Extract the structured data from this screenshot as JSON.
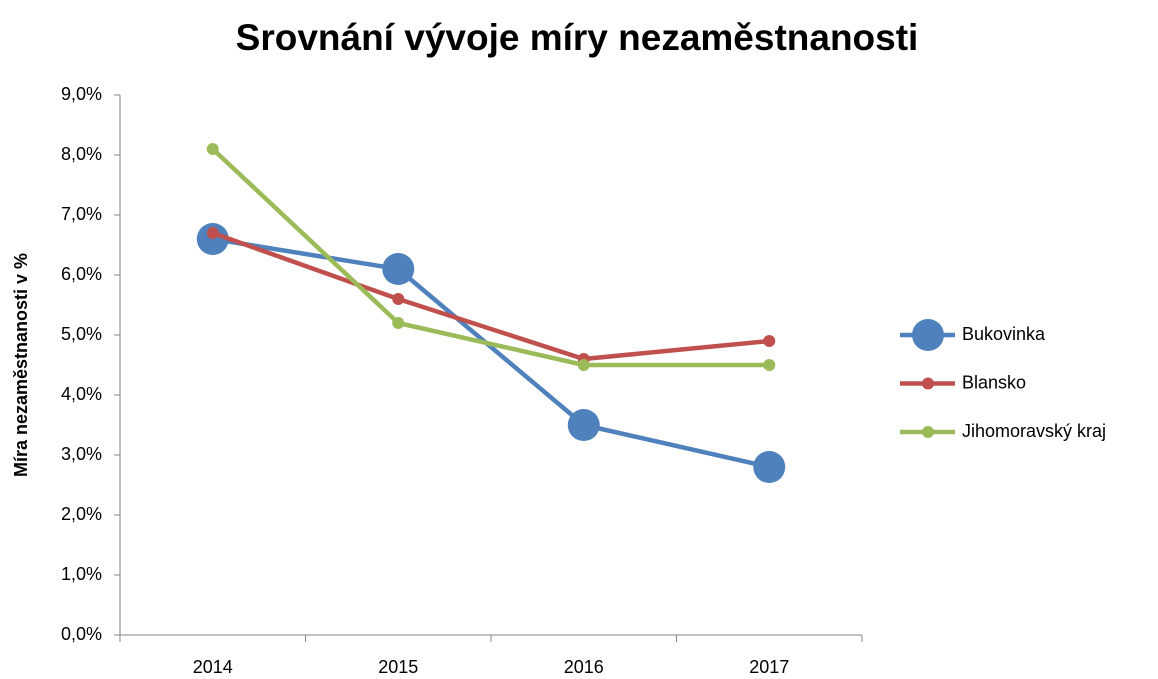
{
  "chart_data": {
    "type": "line",
    "title": "Srovnání vývoje míry nezaměstnanosti",
    "y_label": "Míra nezaměstnanosti v %",
    "categories": [
      "2014",
      "2015",
      "2016",
      "2017"
    ],
    "series": [
      {
        "name": "Bukovinka",
        "color": "#4f81bd",
        "values": [
          6.6,
          6.1,
          3.5,
          2.8
        ]
      },
      {
        "name": "Blansko",
        "color": "#c0504d",
        "values": [
          6.7,
          5.6,
          4.6,
          4.9
        ]
      },
      {
        "name": "Jihomoravský kraj",
        "color": "#9bbb59",
        "values": [
          8.1,
          5.2,
          4.5,
          4.5
        ]
      }
    ],
    "ylim": [
      0,
      9
    ],
    "yticks": [
      {
        "value": 0,
        "label": "0,0%"
      },
      {
        "value": 1,
        "label": "1,0%"
      },
      {
        "value": 2,
        "label": "2,0%"
      },
      {
        "value": 3,
        "label": "3,0%"
      },
      {
        "value": 4,
        "label": "4,0%"
      },
      {
        "value": 5,
        "label": "5,0%"
      },
      {
        "value": 6,
        "label": "6,0%"
      },
      {
        "value": 7,
        "label": "7,0%"
      },
      {
        "value": 8,
        "label": "8,0%"
      },
      {
        "value": 9,
        "label": "9,0%"
      }
    ],
    "grid": false,
    "legend": "right"
  }
}
